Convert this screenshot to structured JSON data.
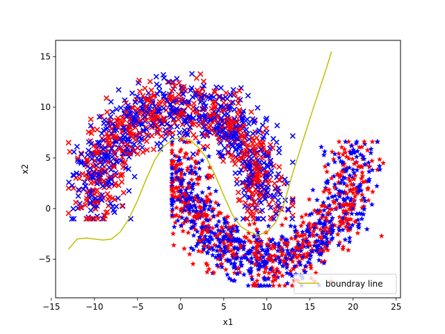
{
  "chart_data": {
    "type": "scatter",
    "title": "",
    "xlabel": "x1",
    "ylabel": "x2",
    "xlim": [
      -14.5,
      25.5
    ],
    "ylim": [
      -8.8,
      16.6
    ],
    "xticks": [
      -15,
      -10,
      -5,
      0,
      5,
      10,
      15,
      20,
      25
    ],
    "yticks": [
      -5,
      0,
      5,
      10,
      15
    ],
    "grid": false,
    "legend": {
      "location": "lower right",
      "entries": [
        "boundray line"
      ]
    },
    "series": [
      {
        "kind": "scatter",
        "marker": "x",
        "color": "#ff0000",
        "shape": "upper moon",
        "center": [
          0,
          0
        ],
        "radius": 10,
        "spread": 1.5,
        "count": 600,
        "x_range": [
          -13,
          13
        ],
        "y_range": [
          -1,
          13.3
        ]
      },
      {
        "kind": "scatter",
        "marker": "x",
        "color": "#0000ff",
        "shape": "upper moon",
        "center": [
          0,
          0
        ],
        "radius": 10,
        "spread": 1.5,
        "count": 650,
        "x_range": [
          -13,
          13
        ],
        "y_range": [
          -1,
          13.3
        ]
      },
      {
        "kind": "scatter",
        "marker": "*",
        "color": "#ff0000",
        "shape": "lower moon",
        "center": [
          10,
          5
        ],
        "radius": 10,
        "spread": 1.5,
        "count": 600,
        "x_range": [
          -1,
          23.5
        ],
        "y_range": [
          -7.6,
          6.6
        ]
      },
      {
        "kind": "scatter",
        "marker": "*",
        "color": "#0000ff",
        "shape": "lower moon",
        "center": [
          10,
          5
        ],
        "radius": 10,
        "spread": 1.5,
        "count": 650,
        "x_range": [
          -1,
          23.5
        ],
        "y_range": [
          -7.6,
          6.6
        ]
      },
      {
        "name": "boundray line",
        "kind": "line",
        "color": "#bfbf00",
        "x": [
          -13,
          -12,
          -11,
          -10,
          -9,
          -8,
          -7,
          -6,
          -5,
          -4,
          -3,
          -2,
          -1,
          0,
          1,
          2,
          3,
          4,
          5,
          6,
          7,
          8,
          9,
          10,
          11,
          12,
          13,
          14,
          15,
          16,
          17,
          17.5
        ],
        "y": [
          -4.0,
          -3.0,
          -2.9,
          -3.0,
          -3.1,
          -3.0,
          -2.3,
          -1.0,
          0.8,
          2.9,
          4.8,
          6.1,
          6.8,
          7.0,
          6.8,
          6.1,
          5.0,
          3.3,
          1.3,
          -0.6,
          -1.8,
          -2.3,
          -2.6,
          -2.3,
          -1.4,
          0.5,
          3.5,
          6.2,
          8.9,
          11.5,
          14.1,
          15.5
        ]
      }
    ]
  }
}
